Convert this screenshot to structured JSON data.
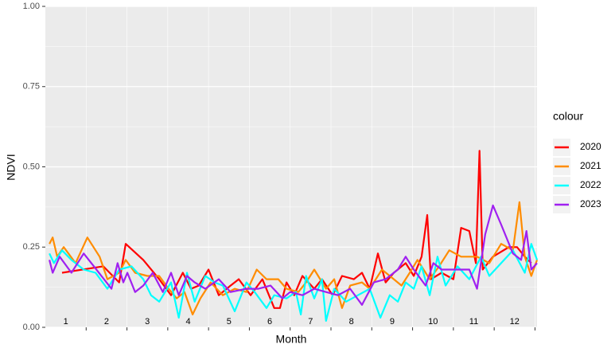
{
  "chart_data": {
    "type": "line",
    "x_label": "Month",
    "y_label": "NDVI",
    "legend_title": "colour",
    "legend_position": "right",
    "grid": true,
    "annotations": [
      "1",
      "2",
      "3",
      "4",
      "5",
      "6",
      "7",
      "8",
      "9",
      "10",
      "11",
      "12"
    ],
    "xlim": [
      0,
      12.05
    ],
    "xticks": [
      1,
      2,
      3,
      4,
      5,
      6,
      7,
      8,
      9,
      10,
      11,
      12
    ],
    "ylim": [
      0,
      1
    ],
    "yticks": [
      {
        "value": 0,
        "label": "0.00"
      },
      {
        "value": 0.25,
        "label": "0.25"
      },
      {
        "value": 0.5,
        "label": "0.50"
      },
      {
        "value": 0.75,
        "label": "0.75"
      },
      {
        "value": 1,
        "label": "1.00"
      }
    ],
    "series": [
      {
        "name": "2020",
        "color": "#ff0000",
        "x": [
          0.41,
          1.42,
          1.81,
          1.97,
          2.4,
          2.79,
          3.08,
          3.37,
          3.57,
          3.76,
          4.0,
          4.25,
          4.54,
          4.74,
          5.03,
          5.32,
          5.61,
          5.75,
          5.91,
          6.1,
          6.3,
          6.59,
          6.78,
          7.04,
          7.27,
          7.56,
          7.76,
          7.95,
          8.15,
          8.34,
          8.54,
          8.83,
          9.03,
          9.22,
          9.36,
          9.45,
          9.71,
          10.0,
          10.19,
          10.39,
          10.55,
          10.64,
          10.72,
          10.97,
          11.36,
          11.56,
          11.75,
          11.91
        ],
        "values": [
          0.17,
          0.19,
          0.14,
          0.26,
          0.21,
          0.15,
          0.1,
          0.17,
          0.12,
          0.13,
          0.18,
          0.1,
          0.13,
          0.15,
          0.1,
          0.15,
          0.06,
          0.06,
          0.14,
          0.1,
          0.16,
          0.12,
          0.15,
          0.1,
          0.16,
          0.15,
          0.17,
          0.12,
          0.23,
          0.14,
          0.17,
          0.2,
          0.16,
          0.22,
          0.35,
          0.15,
          0.17,
          0.15,
          0.31,
          0.3,
          0.2,
          0.55,
          0.18,
          0.22,
          0.25,
          0.25,
          0.22,
          0.2
        ]
      },
      {
        "name": "2021",
        "color": "#ff8c00",
        "x": [
          0.1,
          0.18,
          0.29,
          0.45,
          0.74,
          1.03,
          1.33,
          1.52,
          1.81,
          1.97,
          2.2,
          2.5,
          2.79,
          3.02,
          3.22,
          3.41,
          3.61,
          3.8,
          4.05,
          4.35,
          4.64,
          4.93,
          5.18,
          5.42,
          5.71,
          5.91,
          6.2,
          6.39,
          6.59,
          6.88,
          7.08,
          7.27,
          7.47,
          7.76,
          7.95,
          8.25,
          8.54,
          8.73,
          8.93,
          9.12,
          9.42,
          9.65,
          9.9,
          10.19,
          10.58,
          10.88,
          11.17,
          11.46,
          11.62,
          11.75,
          11.91,
          12.05
        ],
        "values": [
          0.26,
          0.28,
          0.22,
          0.25,
          0.2,
          0.28,
          0.22,
          0.15,
          0.17,
          0.21,
          0.17,
          0.16,
          0.16,
          0.12,
          0.09,
          0.11,
          0.04,
          0.09,
          0.14,
          0.1,
          0.12,
          0.11,
          0.18,
          0.15,
          0.15,
          0.12,
          0.11,
          0.14,
          0.18,
          0.12,
          0.15,
          0.06,
          0.13,
          0.14,
          0.12,
          0.18,
          0.15,
          0.13,
          0.17,
          0.21,
          0.15,
          0.19,
          0.24,
          0.22,
          0.22,
          0.2,
          0.26,
          0.24,
          0.39,
          0.22,
          0.16,
          0.21
        ]
      },
      {
        "name": "2022",
        "color": "#00ffff",
        "x": [
          0.1,
          0.21,
          0.41,
          0.64,
          0.94,
          1.23,
          1.52,
          1.81,
          2.11,
          2.4,
          2.59,
          2.79,
          3.08,
          3.27,
          3.47,
          3.66,
          3.92,
          4.15,
          4.35,
          4.64,
          4.93,
          5.13,
          5.42,
          5.61,
          5.91,
          6.14,
          6.26,
          6.39,
          6.59,
          6.78,
          6.88,
          7.08,
          7.37,
          7.66,
          7.95,
          8.21,
          8.44,
          8.64,
          8.83,
          9.03,
          9.22,
          9.42,
          9.61,
          9.81,
          10.1,
          10.39,
          10.68,
          10.88,
          11.17,
          11.46,
          11.75,
          11.91,
          12.05
        ],
        "values": [
          0.23,
          0.2,
          0.24,
          0.21,
          0.18,
          0.17,
          0.12,
          0.18,
          0.19,
          0.15,
          0.1,
          0.08,
          0.14,
          0.03,
          0.17,
          0.08,
          0.16,
          0.14,
          0.13,
          0.05,
          0.14,
          0.11,
          0.06,
          0.1,
          0.09,
          0.11,
          0.04,
          0.16,
          0.09,
          0.15,
          0.02,
          0.12,
          0.08,
          0.1,
          0.12,
          0.03,
          0.1,
          0.08,
          0.14,
          0.12,
          0.19,
          0.1,
          0.22,
          0.13,
          0.19,
          0.15,
          0.22,
          0.16,
          0.2,
          0.24,
          0.17,
          0.26,
          0.21
        ]
      },
      {
        "name": "2023",
        "color": "#a020f0",
        "x": [
          0.1,
          0.18,
          0.35,
          0.64,
          0.94,
          1.19,
          1.62,
          1.77,
          1.91,
          2.01,
          2.2,
          2.4,
          2.63,
          2.88,
          3.08,
          3.27,
          3.47,
          3.66,
          3.92,
          4.25,
          4.54,
          4.93,
          5.22,
          5.52,
          5.81,
          6.0,
          6.3,
          6.59,
          6.88,
          7.17,
          7.47,
          7.76,
          8.05,
          8.34,
          8.64,
          8.83,
          9.03,
          9.32,
          9.51,
          9.71,
          10.0,
          10.39,
          10.58,
          10.78,
          10.97,
          11.17,
          11.46,
          11.66,
          11.79,
          11.91,
          12.05
        ],
        "values": [
          0.21,
          0.17,
          0.22,
          0.17,
          0.23,
          0.19,
          0.12,
          0.2,
          0.14,
          0.17,
          0.11,
          0.13,
          0.17,
          0.11,
          0.17,
          0.1,
          0.16,
          0.14,
          0.12,
          0.15,
          0.11,
          0.12,
          0.12,
          0.13,
          0.09,
          0.11,
          0.1,
          0.12,
          0.11,
          0.1,
          0.12,
          0.07,
          0.14,
          0.15,
          0.18,
          0.22,
          0.18,
          0.13,
          0.2,
          0.18,
          0.18,
          0.18,
          0.12,
          0.29,
          0.38,
          0.32,
          0.23,
          0.21,
          0.3,
          0.18,
          0.2
        ]
      }
    ]
  }
}
